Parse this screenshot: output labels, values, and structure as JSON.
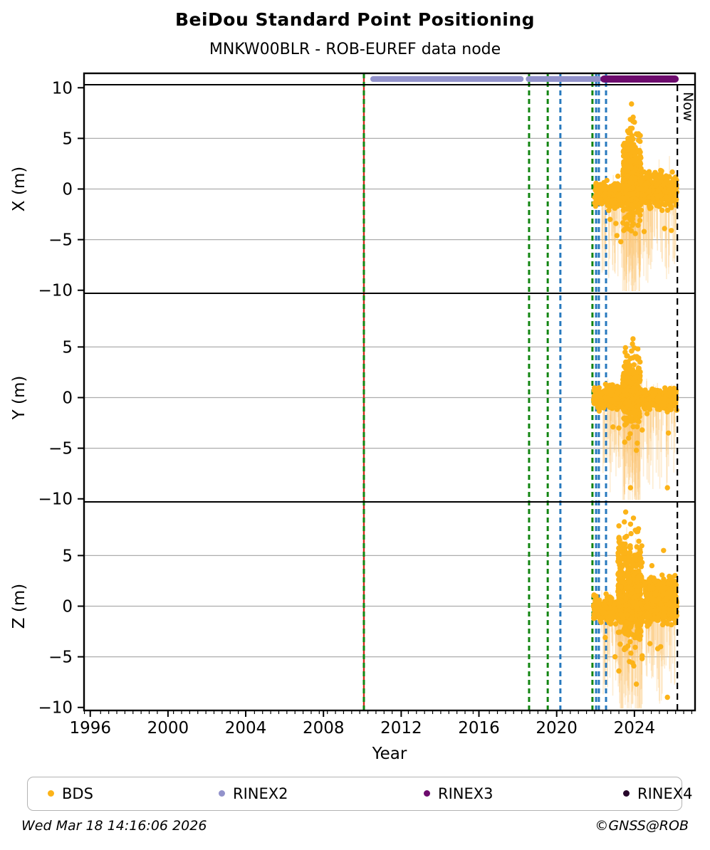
{
  "header": {
    "title": "BeiDou Standard Point Positioning",
    "subtitle": "MNKW00BLR - ROB-EUREF data node"
  },
  "footer": {
    "timestamp": "Wed Mar 18 14:16:06 2026",
    "credit": "©GNSS@ROB"
  },
  "legend": {
    "items": [
      {
        "label": "BDS",
        "color": "#FCB318"
      },
      {
        "label": "RINEX2",
        "color": "#9292CB"
      },
      {
        "label": "RINEX3",
        "color": "#6D0B6D"
      },
      {
        "label": "RINEX4",
        "color": "#26062A"
      }
    ]
  },
  "chart_data": {
    "type": "scatter",
    "title": "BeiDou Standard Point Positioning",
    "subtitle": "MNKW00BLR - ROB-EUREF data node",
    "xlabel": "Year",
    "xlim": [
      1995.68,
      2027.12
    ],
    "x_major_ticks": [
      1996,
      2000,
      2004,
      2008,
      2012,
      2016,
      2020,
      2024
    ],
    "x_minor_step_years": 0.4167,
    "grid": true,
    "grid_values": [
      5,
      0,
      -5
    ],
    "now_line": {
      "x": 2026.21,
      "label": "Now",
      "color": "#000000"
    },
    "point_color": "#FCB318",
    "stem_color": "rgba(253,197,112,0.32)",
    "panels": [
      {
        "ylabel": "X (m)",
        "ylim": [
          -10.3,
          10.3
        ],
        "y_ticks": [
          10,
          5,
          0,
          -5,
          -10
        ],
        "bands": [
          {
            "x0": 2021.95,
            "x1": 2023.4,
            "cy": -0.6,
            "sd": 0.55,
            "n": 260,
            "lo": -2.6,
            "hi": 1.6
          },
          {
            "x0": 2023.4,
            "x1": 2024.35,
            "cy": 0.9,
            "sd": 2.1,
            "n": 440,
            "lo": -4.3,
            "hi": 7.3
          },
          {
            "x0": 2024.35,
            "x1": 2026.18,
            "cy": -0.1,
            "sd": 0.7,
            "n": 460,
            "lo": -2.6,
            "hi": 2.8
          }
        ],
        "outliers": [
          [
            2023.85,
            8.4
          ],
          [
            2023.92,
            6.7
          ],
          [
            2024.0,
            6.6
          ],
          [
            2023.88,
            6.0
          ],
          [
            2023.78,
            5.6
          ],
          [
            2023.05,
            -3.4
          ],
          [
            2023.1,
            -4.6
          ],
          [
            2023.3,
            -5.2
          ],
          [
            2023.5,
            -4.0
          ],
          [
            2024.5,
            -4.2
          ],
          [
            2025.55,
            -3.9
          ],
          [
            2025.9,
            -4.1
          ],
          [
            2022.75,
            -3.0
          ],
          [
            2023.6,
            -3.6
          ],
          [
            2024.05,
            -4.4
          ]
        ]
      },
      {
        "ylabel": "Y (m)",
        "ylim": [
          -10.3,
          10.3
        ],
        "y_ticks": [
          5,
          0,
          -5,
          -10
        ],
        "bands": [
          {
            "x0": 2021.9,
            "x1": 2026.18,
            "cy": -0.1,
            "sd": 0.5,
            "n": 640,
            "lo": -2.2,
            "hi": 2.4
          },
          {
            "x0": 2023.4,
            "x1": 2024.3,
            "cy": 0.7,
            "sd": 1.7,
            "n": 300,
            "lo": -4.6,
            "hi": 5.8
          }
        ],
        "outliers": [
          [
            2023.93,
            5.8
          ],
          [
            2023.9,
            5.3
          ],
          [
            2024.0,
            4.9
          ],
          [
            2023.85,
            4.6
          ],
          [
            2023.8,
            -8.9
          ],
          [
            2025.7,
            -8.9
          ],
          [
            2023.5,
            -4.4
          ],
          [
            2023.7,
            -4.0
          ],
          [
            2024.1,
            -5.2
          ],
          [
            2024.15,
            -4.5
          ],
          [
            2022.9,
            -2.9
          ],
          [
            2025.75,
            -3.5
          ],
          [
            2024.4,
            -3.2
          ],
          [
            2023.2,
            -3.0
          ]
        ]
      },
      {
        "ylabel": "Z (m)",
        "ylim": [
          -10.3,
          10.3
        ],
        "y_ticks": [
          5,
          0,
          -5,
          -10
        ],
        "bands": [
          {
            "x0": 2021.9,
            "x1": 2026.18,
            "cy": -0.35,
            "sd": 0.6,
            "n": 680,
            "lo": -2.6,
            "hi": 1.4
          },
          {
            "x0": 2023.15,
            "x1": 2024.4,
            "cy": 1.5,
            "sd": 2.6,
            "n": 480,
            "lo": -6.2,
            "hi": 9.4
          },
          {
            "x0": 2024.55,
            "x1": 2026.15,
            "cy": 1.7,
            "sd": 0.6,
            "n": 300,
            "lo": 0.4,
            "hi": 3.4
          }
        ],
        "outliers": [
          [
            2023.55,
            9.3
          ],
          [
            2023.95,
            8.7
          ],
          [
            2023.8,
            8.1
          ],
          [
            2024.05,
            7.5
          ],
          [
            2023.6,
            6.9
          ],
          [
            2025.5,
            5.5
          ],
          [
            2024.9,
            4.0
          ],
          [
            2023.2,
            -6.4
          ],
          [
            2023.9,
            -5.6
          ],
          [
            2023.97,
            -5.9
          ],
          [
            2024.1,
            -7.7
          ],
          [
            2025.7,
            -9.0
          ],
          [
            2024.4,
            -4.9
          ],
          [
            2025.2,
            -4.2
          ],
          [
            2025.35,
            -4.0
          ],
          [
            2024.8,
            -3.7
          ],
          [
            2022.5,
            -3.1
          ],
          [
            2023.0,
            -5.0
          ]
        ]
      }
    ],
    "events": [
      {
        "x": 2010.08,
        "color": "#D42A1E",
        "style": "solid",
        "width": 2.4
      },
      {
        "x": 2010.08,
        "color": "#118511",
        "style": "dashed",
        "width": 3.0
      },
      {
        "x": 2018.58,
        "color": "#118511",
        "style": "dashed",
        "width": 3.0
      },
      {
        "x": 2019.54,
        "color": "#118511",
        "style": "dashed",
        "width": 3.0
      },
      {
        "x": 2020.19,
        "color": "#2779BE",
        "style": "dashed",
        "width": 3.0
      },
      {
        "x": 2021.84,
        "color": "#118511",
        "style": "dashed",
        "width": 3.0
      },
      {
        "x": 2022.03,
        "color": "#2779BE",
        "style": "dashed",
        "width": 3.0
      },
      {
        "x": 2022.17,
        "color": "#2779BE",
        "style": "dashed",
        "width": 3.0
      },
      {
        "x": 2022.54,
        "color": "#2779BE",
        "style": "dashed",
        "width": 3.0
      }
    ],
    "availability": {
      "rinex2": {
        "color": "#9292CB",
        "height": 8,
        "segments": [
          [
            2010.41,
            2018.3
          ],
          [
            2018.41,
            2022.32
          ]
        ]
      },
      "rinex3": {
        "color": "#6D0B6D",
        "height": 10,
        "segments": [
          [
            2022.25,
            2026.28
          ]
        ]
      }
    }
  }
}
